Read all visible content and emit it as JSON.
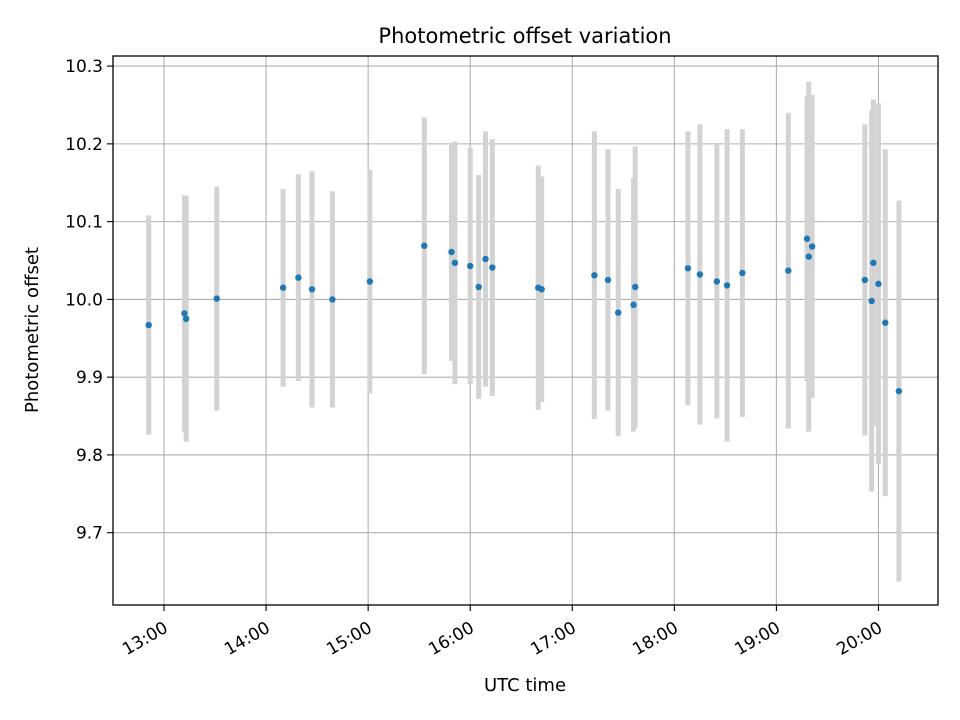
{
  "chart_data": {
    "type": "scatter",
    "title": "Photometric offset variation",
    "xlabel": "UTC time",
    "ylabel": "Photometric offset",
    "grid": true,
    "x_ticks": [
      "13:00",
      "14:00",
      "15:00",
      "16:00",
      "17:00",
      "18:00",
      "19:00",
      "20:00"
    ],
    "y_ticks": [
      "9.7",
      "9.8",
      "9.9",
      "10.0",
      "10.1",
      "10.2",
      "10.3"
    ],
    "xlim": [
      "12:30",
      "20:35"
    ],
    "ylim": [
      9.607,
      10.313
    ],
    "colors": {
      "marker": "#1f77b4",
      "errorbar": "#d3d3d3",
      "grid": "#b0b0b0"
    },
    "series": [
      {
        "points": [
          {
            "x": "12:51",
            "y": 9.967,
            "err": 0.141
          },
          {
            "x": "13:12",
            "y": 9.982,
            "err": 0.152
          },
          {
            "x": "13:13",
            "y": 9.975,
            "err": 0.158
          },
          {
            "x": "13:31",
            "y": 10.001,
            "err": 0.144
          },
          {
            "x": "14:10",
            "y": 10.015,
            "err": 0.127
          },
          {
            "x": "14:19",
            "y": 10.028,
            "err": 0.133
          },
          {
            "x": "14:27",
            "y": 10.013,
            "err": 0.152
          },
          {
            "x": "14:39",
            "y": 10.0,
            "err": 0.139
          },
          {
            "x": "15:01",
            "y": 10.023,
            "err": 0.144
          },
          {
            "x": "15:33",
            "y": 10.069,
            "err": 0.165
          },
          {
            "x": "15:49",
            "y": 10.061,
            "err": 0.14
          },
          {
            "x": "15:51",
            "y": 10.047,
            "err": 0.156
          },
          {
            "x": "16:00",
            "y": 10.043,
            "err": 0.152
          },
          {
            "x": "16:05",
            "y": 10.016,
            "err": 0.144
          },
          {
            "x": "16:09",
            "y": 10.052,
            "err": 0.164
          },
          {
            "x": "16:13",
            "y": 10.041,
            "err": 0.165
          },
          {
            "x": "16:40",
            "y": 10.015,
            "err": 0.157
          },
          {
            "x": "16:42",
            "y": 10.013,
            "err": 0.145
          },
          {
            "x": "17:13",
            "y": 10.031,
            "err": 0.185
          },
          {
            "x": "17:21",
            "y": 10.025,
            "err": 0.168
          },
          {
            "x": "17:27",
            "y": 9.983,
            "err": 0.159
          },
          {
            "x": "17:36",
            "y": 9.993,
            "err": 0.163
          },
          {
            "x": "17:37",
            "y": 10.016,
            "err": 0.181
          },
          {
            "x": "18:08",
            "y": 10.04,
            "err": 0.176
          },
          {
            "x": "18:15",
            "y": 10.032,
            "err": 0.193
          },
          {
            "x": "18:25",
            "y": 10.023,
            "err": 0.176
          },
          {
            "x": "18:31",
            "y": 10.018,
            "err": 0.201
          },
          {
            "x": "18:40",
            "y": 10.034,
            "err": 0.185
          },
          {
            "x": "19:07",
            "y": 10.037,
            "err": 0.203
          },
          {
            "x": "19:18",
            "y": 10.078,
            "err": 0.183
          },
          {
            "x": "19:19",
            "y": 10.055,
            "err": 0.225
          },
          {
            "x": "19:21",
            "y": 10.068,
            "err": 0.195
          },
          {
            "x": "19:52",
            "y": 10.025,
            "err": 0.2
          },
          {
            "x": "19:56",
            "y": 9.998,
            "err": 0.245
          },
          {
            "x": "19:57",
            "y": 10.047,
            "err": 0.21
          },
          {
            "x": "20:00",
            "y": 10.02,
            "err": 0.232
          },
          {
            "x": "20:04",
            "y": 9.97,
            "err": 0.223
          },
          {
            "x": "20:12",
            "y": 9.882,
            "err": 0.245
          }
        ]
      }
    ]
  }
}
